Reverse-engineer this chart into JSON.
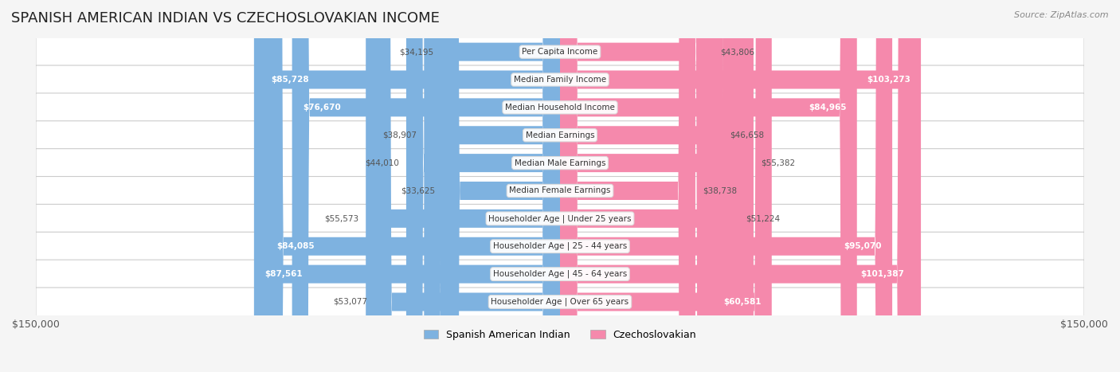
{
  "title": "SPANISH AMERICAN INDIAN VS CZECHOSLOVAKIAN INCOME",
  "source": "Source: ZipAtlas.com",
  "categories": [
    "Per Capita Income",
    "Median Family Income",
    "Median Household Income",
    "Median Earnings",
    "Median Male Earnings",
    "Median Female Earnings",
    "Householder Age | Under 25 years",
    "Householder Age | 25 - 44 years",
    "Householder Age | 45 - 64 years",
    "Householder Age | Over 65 years"
  ],
  "left_values": [
    34195,
    85728,
    76670,
    38907,
    44010,
    33625,
    55573,
    84085,
    87561,
    53077
  ],
  "right_values": [
    43806,
    103273,
    84965,
    46658,
    55382,
    38738,
    51224,
    95070,
    101387,
    60581
  ],
  "left_labels": [
    "$34,195",
    "$85,728",
    "$76,670",
    "$38,907",
    "$44,010",
    "$33,625",
    "$55,573",
    "$84,085",
    "$87,561",
    "$53,077"
  ],
  "right_labels": [
    "$43,806",
    "$103,273",
    "$84,965",
    "$46,658",
    "$55,382",
    "$38,738",
    "$51,224",
    "$95,070",
    "$101,387",
    "$60,581"
  ],
  "left_color": "#7EB2E0",
  "right_color": "#F589AC",
  "left_color_solid": "#5A9BD5",
  "right_color_solid": "#F06090",
  "left_legend": "Spanish American Indian",
  "right_legend": "Czechoslovakian",
  "max_value": 150000,
  "bg_color": "#f5f5f5",
  "row_bg": "#ffffff",
  "label_inside_color_right_large": "#cc2266",
  "axis_label_left": "$150,000",
  "axis_label_right": "$150,000"
}
